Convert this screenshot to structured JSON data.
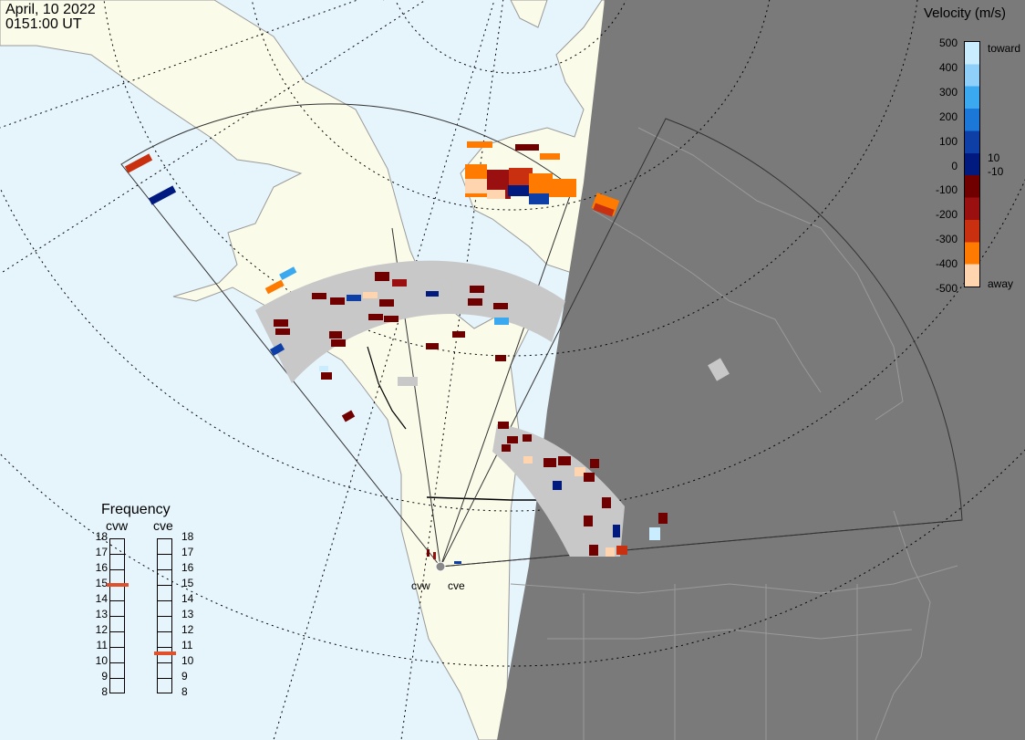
{
  "header": {
    "date": "April, 10 2022",
    "time": "0151:00 UT"
  },
  "colors": {
    "ocean": "#e6f4fc",
    "land": "#fbfbe9",
    "night": "#7a7a7a",
    "coastline": "#9a9a9a",
    "border": "#000000",
    "grid": "#000000",
    "ground_scatter": "#c8c8c8",
    "frequency_marker": "#e0502a"
  },
  "velocity_scale": {
    "title": "Velocity (m/s)",
    "ticks": [
      "500",
      "400",
      "300",
      "200",
      "100",
      "0",
      "-100",
      "-200",
      "-300",
      "-400",
      "-500"
    ],
    "inner_ticks": [
      "10",
      "-10"
    ],
    "toward_label": "toward",
    "away_label": "away",
    "colors": [
      "#c9ecff",
      "#8fd0fa",
      "#3ba9f0",
      "#1c78d8",
      "#0d3fa6",
      "#001a80",
      "#700000",
      "#9a1010",
      "#c83010",
      "#ff7a00",
      "#ffd5b0"
    ]
  },
  "frequency": {
    "title": "Frequency",
    "radars": [
      {
        "code": "cvw",
        "selected_mhz": 15
      },
      {
        "code": "cve",
        "selected_mhz": 10.6
      }
    ],
    "ticks": [
      "18",
      "17",
      "16",
      "15",
      "14",
      "13",
      "12",
      "11",
      "10",
      "9",
      "8"
    ]
  },
  "sites": [
    {
      "code": "cvw"
    },
    {
      "code": "cve"
    }
  ]
}
